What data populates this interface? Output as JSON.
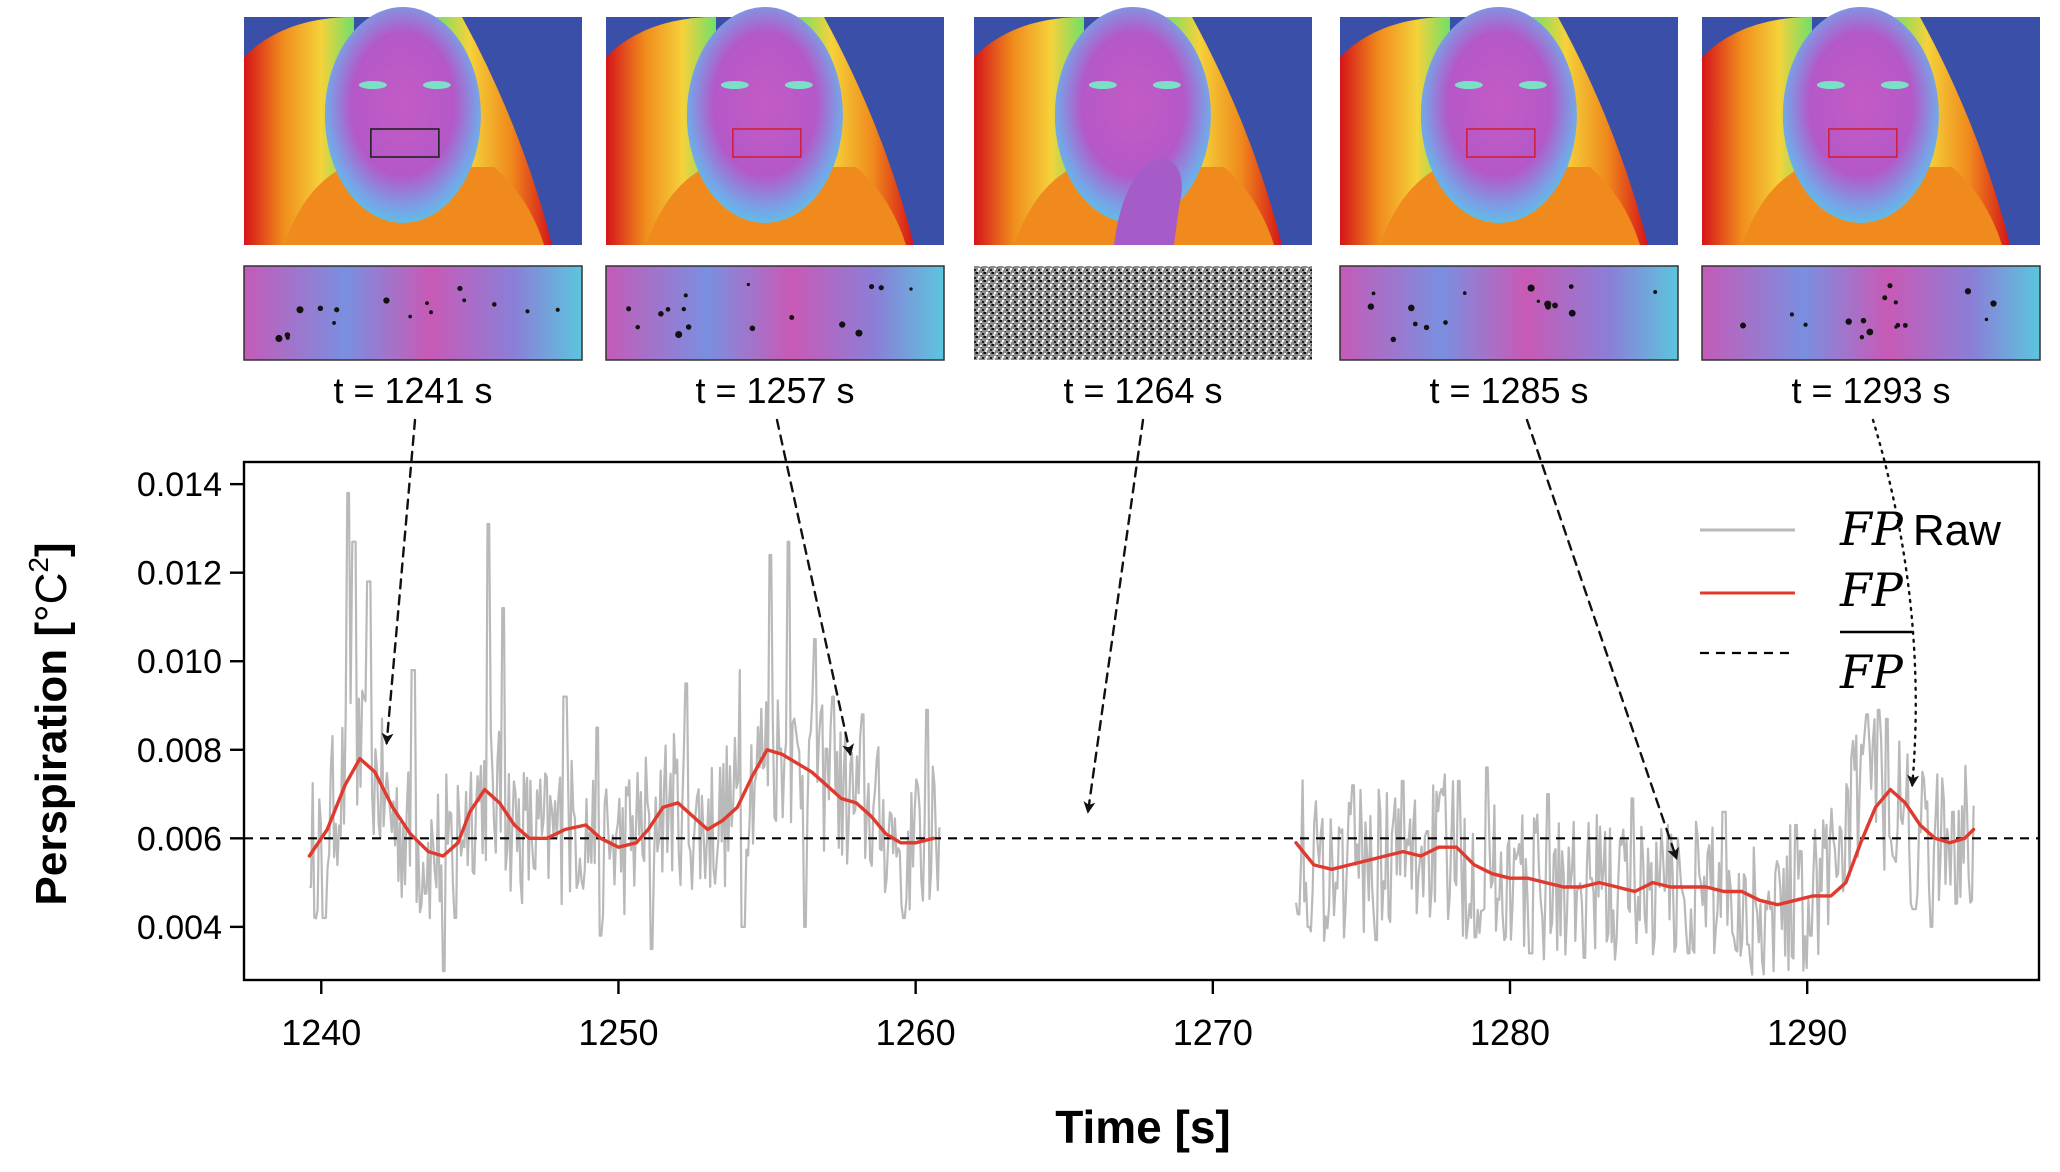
{
  "panels": [
    {
      "label": "t = 1241 s",
      "time": 1241,
      "target": [
        1242.2,
        0.00815
      ],
      "style": "dashed",
      "occluded": false
    },
    {
      "label": "t = 1257 s",
      "time": 1257,
      "target": [
        1257.8,
        0.0079
      ],
      "style": "dashed",
      "occluded": false
    },
    {
      "label": "t = 1264 s",
      "time": 1264,
      "target": [
        1265.8,
        0.0066
      ],
      "style": "dashed",
      "occluded": true
    },
    {
      "label": "t = 1285 s",
      "time": 1285,
      "target": [
        1285.6,
        0.00555
      ],
      "style": "dashed",
      "occluded": false
    },
    {
      "label": "t = 1293 s",
      "time": 1293,
      "target": [
        1293.4,
        0.0072
      ],
      "style": "dotted",
      "occluded": false
    }
  ],
  "legend": {
    "raw_math": "FP",
    "raw_suffix": "Raw",
    "smooth_math": "FP",
    "mean_math": "FP"
  },
  "chart_data": {
    "type": "line",
    "xlabel": "Time [s]",
    "ylabel": "Perspiration [°C²]",
    "ylabel_parts": {
      "main": "Perspiration [",
      "unit": "°C",
      "sup": "2",
      "close": "]"
    },
    "xlim": [
      1237.4,
      1297.8
    ],
    "ylim": [
      0.0028,
      0.0145
    ],
    "xticks": [
      1240,
      1250,
      1260,
      1270,
      1280,
      1290
    ],
    "xtick_labels": [
      "1240",
      "1250",
      "1260",
      "1270",
      "1280",
      "1290"
    ],
    "yticks": [
      0.004,
      0.006,
      0.008,
      0.01,
      0.012,
      0.014
    ],
    "ytick_labels": [
      "0.004",
      "0.006",
      "0.008",
      "0.010",
      "0.012",
      "0.014"
    ],
    "mean_value": 0.006,
    "legend_position": "top-right",
    "colors": {
      "raw": "#b9b9b9",
      "smooth": "#e03a2f",
      "mean": "#000000"
    },
    "series": [
      {
        "key": "smooth_a",
        "x": [
          1239.6,
          1240.2,
          1240.8,
          1241.3,
          1241.8,
          1242.4,
          1243.0,
          1243.6,
          1244.1,
          1244.6,
          1245.0,
          1245.5,
          1246.0,
          1246.5,
          1247.0,
          1247.6,
          1248.2,
          1248.9,
          1249.4,
          1250.0,
          1250.6,
          1251.0,
          1251.5,
          1252.0,
          1252.5,
          1253.0,
          1253.5,
          1254.0,
          1254.5,
          1255.0,
          1255.5,
          1256.0,
          1256.5,
          1257.0,
          1257.5,
          1258.0,
          1258.5,
          1259.0,
          1259.5,
          1260.0,
          1260.6
        ],
        "y": [
          0.0056,
          0.0062,
          0.0072,
          0.0078,
          0.0075,
          0.0067,
          0.0061,
          0.0057,
          0.0056,
          0.0059,
          0.0066,
          0.0071,
          0.0068,
          0.0063,
          0.006,
          0.006,
          0.0062,
          0.0063,
          0.006,
          0.0058,
          0.0059,
          0.0062,
          0.0067,
          0.0068,
          0.0065,
          0.0062,
          0.0064,
          0.0067,
          0.0074,
          0.008,
          0.0079,
          0.0077,
          0.0075,
          0.0072,
          0.0069,
          0.0068,
          0.0065,
          0.0061,
          0.0059,
          0.0059,
          0.006
        ]
      },
      {
        "key": "smooth_b",
        "x": [
          1272.8,
          1273.4,
          1274.0,
          1274.6,
          1275.2,
          1275.8,
          1276.4,
          1277.0,
          1277.6,
          1278.2,
          1278.8,
          1279.4,
          1280.0,
          1280.6,
          1281.2,
          1281.8,
          1282.4,
          1283.0,
          1283.6,
          1284.2,
          1284.8,
          1285.4,
          1286.0,
          1286.6,
          1287.2,
          1287.8,
          1288.4,
          1289.0,
          1289.6,
          1290.2,
          1290.8,
          1291.3,
          1291.8,
          1292.3,
          1292.8,
          1293.3,
          1293.8,
          1294.3,
          1294.8,
          1295.3,
          1295.6
        ],
        "y": [
          0.0059,
          0.0054,
          0.0053,
          0.0054,
          0.0055,
          0.0056,
          0.0057,
          0.0056,
          0.0058,
          0.0058,
          0.0054,
          0.0052,
          0.0051,
          0.0051,
          0.005,
          0.0049,
          0.0049,
          0.005,
          0.0049,
          0.0048,
          0.005,
          0.0049,
          0.0049,
          0.0049,
          0.0048,
          0.0048,
          0.0046,
          0.0045,
          0.0046,
          0.0047,
          0.0047,
          0.005,
          0.0059,
          0.0067,
          0.0071,
          0.0068,
          0.0063,
          0.006,
          0.0059,
          0.006,
          0.0062
        ]
      }
    ],
    "raw_segments": [
      {
        "x_start": 1239.6,
        "x_end": 1260.8,
        "baseline": [
          0.0056,
          0.0062,
          0.0072,
          0.0078,
          0.0075,
          0.0067,
          0.0061,
          0.0057,
          0.0056,
          0.0059,
          0.0066,
          0.0071,
          0.0068,
          0.0063,
          0.006,
          0.006,
          0.0062,
          0.0063,
          0.006,
          0.0058,
          0.0059,
          0.0062,
          0.0067,
          0.0068,
          0.0065,
          0.0062,
          0.0064,
          0.0067,
          0.0074,
          0.008,
          0.0079,
          0.0077,
          0.0075,
          0.0072,
          0.0069,
          0.0068,
          0.0065,
          0.0061,
          0.0059,
          0.0059,
          0.006
        ],
        "peaks": [
          [
            1240.9,
            0.0138
          ],
          [
            1241.1,
            0.0127
          ],
          [
            1241.6,
            0.0118
          ],
          [
            1243.1,
            0.0098
          ],
          [
            1245.6,
            0.0131
          ],
          [
            1246.1,
            0.0112
          ],
          [
            1248.2,
            0.0092
          ],
          [
            1249.3,
            0.0085
          ],
          [
            1252.3,
            0.0095
          ],
          [
            1254.1,
            0.0098
          ],
          [
            1255.1,
            0.0124
          ],
          [
            1255.7,
            0.0127
          ],
          [
            1256.6,
            0.0105
          ],
          [
            1257.2,
            0.0092
          ],
          [
            1258.2,
            0.0088
          ],
          [
            1260.4,
            0.0089
          ]
        ],
        "troughs": [
          [
            1239.6,
            0.0049
          ],
          [
            1240.1,
            0.0042
          ],
          [
            1244.1,
            0.003
          ],
          [
            1244.5,
            0.0042
          ],
          [
            1249.4,
            0.0038
          ],
          [
            1251.1,
            0.0035
          ],
          [
            1254.2,
            0.004
          ],
          [
            1256.3,
            0.004
          ],
          [
            1259.6,
            0.0042
          ]
        ]
      },
      {
        "x_start": 1272.8,
        "x_end": 1295.6,
        "baseline": [
          0.0059,
          0.0054,
          0.0053,
          0.0054,
          0.0055,
          0.0056,
          0.0057,
          0.0056,
          0.0058,
          0.0058,
          0.0054,
          0.0052,
          0.0051,
          0.0051,
          0.005,
          0.0049,
          0.0049,
          0.005,
          0.0049,
          0.0048,
          0.005,
          0.0049,
          0.0049,
          0.0049,
          0.0048,
          0.0048,
          0.0046,
          0.0045,
          0.0046,
          0.0047,
          0.0047,
          0.005,
          0.0059,
          0.0067,
          0.0071,
          0.0068,
          0.0063,
          0.006,
          0.0059,
          0.006,
          0.0062
        ],
        "peaks": [
          [
            1274.7,
            0.0072
          ],
          [
            1276.4,
            0.0073
          ],
          [
            1278.3,
            0.0073
          ],
          [
            1279.2,
            0.0076
          ],
          [
            1281.3,
            0.007
          ],
          [
            1284.1,
            0.0069
          ],
          [
            1287.2,
            0.0066
          ],
          [
            1289.6,
            0.0063
          ],
          [
            1292.0,
            0.0088
          ],
          [
            1292.4,
            0.0089
          ],
          [
            1292.7,
            0.0087
          ],
          [
            1294.9,
            0.0066
          ]
        ],
        "troughs": [
          [
            1273.2,
            0.004
          ],
          [
            1275.5,
            0.0037
          ],
          [
            1280.7,
            0.0034
          ],
          [
            1282.5,
            0.0033
          ],
          [
            1286.0,
            0.0034
          ],
          [
            1288.0,
            0.0036
          ],
          [
            1290.1,
            0.0038
          ],
          [
            1293.6,
            0.0044
          ],
          [
            1294.2,
            0.004
          ]
        ]
      }
    ]
  }
}
